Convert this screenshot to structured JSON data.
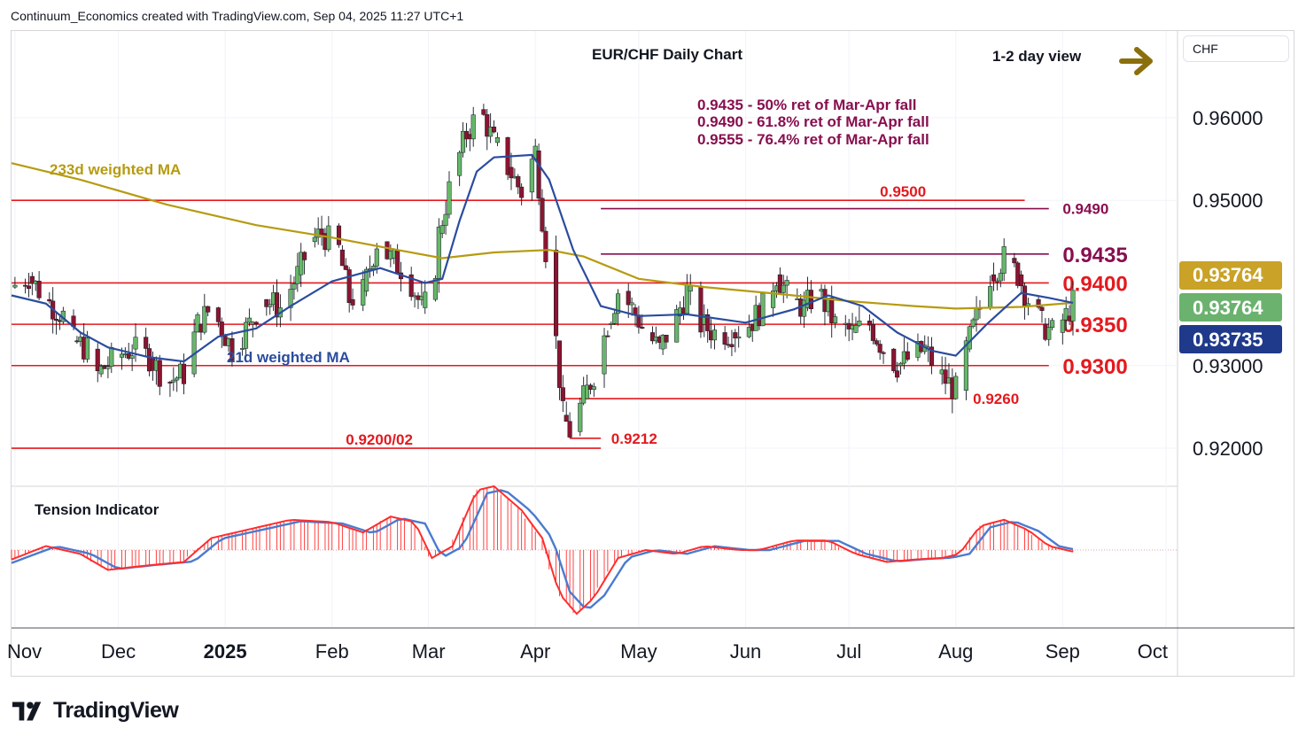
{
  "header": {
    "attribution": "Continuum_Economics created with TradingView.com, Sep 04, 2025 11:27 UTC+1"
  },
  "currency_badge": "CHF",
  "branding": "TradingView",
  "colors": {
    "support_resistance": "#e4191e",
    "retracement": "#880e4f",
    "ma233": "#b69b10",
    "ma21": "#2a4c9e",
    "candle_up": "#67b76a",
    "candle_down": "#8a1530",
    "badge_gold": "#c9a227",
    "badge_green": "#6bb26e",
    "badge_navy": "#1f3a8a",
    "tension_red": "#ff2d2d",
    "tension_blue": "#4a7bd0"
  },
  "chart_data": {
    "type": "candlestick",
    "title": "EUR/CHF Daily Chart",
    "view": "1-2 day view",
    "view_arrow": "right-arrow-icon",
    "y_axis": {
      "ticks": [
        "0.96000",
        "0.95000",
        "0.93000",
        "0.92000"
      ],
      "range": [
        0.9155,
        0.9705
      ]
    },
    "x_axis": {
      "ticks": [
        "Nov",
        "Dec",
        "2025",
        "Feb",
        "Mar",
        "Apr",
        "May",
        "Jun",
        "Jul",
        "Aug",
        "Sep",
        "Oct"
      ],
      "range": [
        "2024-10-31",
        "2025-10-01"
      ]
    },
    "price_badges": [
      "0.93764",
      "0.93764",
      "0.93735"
    ],
    "levels": [
      {
        "label": "0.9500",
        "value": 0.95,
        "from": "2024-10-31",
        "to": "2025-08-21",
        "label_date": "2025-07-10",
        "style": "sr"
      },
      {
        "label": "0.9490",
        "value": 0.949,
        "from": "2025-04-20",
        "to": "2025-08-28",
        "label_date": "2025-09-01",
        "style": "ret"
      },
      {
        "label": "0.9435",
        "value": 0.9435,
        "from": "2025-04-20",
        "to": "2025-08-28",
        "label_date": "2025-09-01",
        "style": "ret-bold"
      },
      {
        "label": "0.9400",
        "value": 0.94,
        "from": "2024-10-31",
        "to": "2025-08-28",
        "label_date": "2025-09-01",
        "style": "sr-bold"
      },
      {
        "label": "0.9350",
        "value": 0.935,
        "from": "2024-10-31",
        "to": "2025-08-28",
        "label_date": "2025-09-01",
        "style": "sr-bold"
      },
      {
        "label": "0.9300",
        "value": 0.93,
        "from": "2024-10-31",
        "to": "2025-08-28",
        "label_date": "2025-09-01",
        "style": "sr-bold"
      },
      {
        "label": "0.9260",
        "value": 0.926,
        "from": "2025-04-09",
        "to": "2025-08-01",
        "label_date": "2025-08-06",
        "style": "sr"
      },
      {
        "label": "0.9212",
        "value": 0.9212,
        "from": "2025-04-11",
        "to": "2025-04-20",
        "label_date": "2025-04-23",
        "style": "sr"
      },
      {
        "label": "0.9200/02",
        "value": 0.92,
        "from": "2024-10-31",
        "to": "2025-04-20",
        "label_date": "2025-02-05",
        "style": "sr"
      }
    ],
    "annotations": [
      "0.9435 - 50% ret of Mar-Apr fall",
      "0.9490 - 61.8% ret of Mar-Apr fall",
      "0.9555 - 76.4% ret of Mar-Apr fall"
    ],
    "series": [
      {
        "name": "233d weighted MA",
        "points": [
          [
            "2024-10-31",
            0.9545
          ],
          [
            "2024-11-20",
            0.9525
          ],
          [
            "2024-12-15",
            0.9495
          ],
          [
            "2025-01-10",
            0.947
          ],
          [
            "2025-02-01",
            0.9455
          ],
          [
            "2025-02-20",
            0.944
          ],
          [
            "2025-03-05",
            0.943
          ],
          [
            "2025-03-20",
            0.9437
          ],
          [
            "2025-04-05",
            0.944
          ],
          [
            "2025-04-15",
            0.9432
          ],
          [
            "2025-05-01",
            0.9405
          ],
          [
            "2025-05-20",
            0.9395
          ],
          [
            "2025-06-10",
            0.9387
          ],
          [
            "2025-07-01",
            0.9378
          ],
          [
            "2025-07-20",
            0.9372
          ],
          [
            "2025-08-01",
            0.9369
          ],
          [
            "2025-08-20",
            0.9371
          ],
          [
            "2025-09-04",
            0.9376
          ]
        ]
      },
      {
        "name": "21d weighted MA",
        "points": [
          [
            "2024-10-31",
            0.9385
          ],
          [
            "2024-11-10",
            0.9375
          ],
          [
            "2024-11-20",
            0.934
          ],
          [
            "2024-11-28",
            0.9322
          ],
          [
            "2024-12-10",
            0.931
          ],
          [
            "2024-12-20",
            0.9305
          ],
          [
            "2024-12-30",
            0.9335
          ],
          [
            "2025-01-10",
            0.9345
          ],
          [
            "2025-01-20",
            0.9372
          ],
          [
            "2025-02-01",
            0.9402
          ],
          [
            "2025-02-15",
            0.9418
          ],
          [
            "2025-02-28",
            0.94
          ],
          [
            "2025-03-05",
            0.9405
          ],
          [
            "2025-03-10",
            0.9475
          ],
          [
            "2025-03-15",
            0.9535
          ],
          [
            "2025-03-20",
            0.9552
          ],
          [
            "2025-03-31",
            0.9555
          ],
          [
            "2025-04-05",
            0.9525
          ],
          [
            "2025-04-12",
            0.944
          ],
          [
            "2025-04-20",
            0.9372
          ],
          [
            "2025-05-01",
            0.936
          ],
          [
            "2025-05-15",
            0.9362
          ],
          [
            "2025-06-01",
            0.9352
          ],
          [
            "2025-06-15",
            0.9368
          ],
          [
            "2025-06-25",
            0.9385
          ],
          [
            "2025-07-05",
            0.9372
          ],
          [
            "2025-07-15",
            0.934
          ],
          [
            "2025-07-25",
            0.9318
          ],
          [
            "2025-08-01",
            0.9312
          ],
          [
            "2025-08-10",
            0.935
          ],
          [
            "2025-08-20",
            0.9388
          ],
          [
            "2025-08-28",
            0.9382
          ],
          [
            "2025-09-04",
            0.9376
          ]
        ]
      }
    ],
    "ohlc_approx": [
      [
        "2024-10-31",
        0.9395
      ],
      [
        "2024-11-05",
        0.9408
      ],
      [
        "2024-11-10",
        0.938
      ],
      [
        "2024-11-15",
        0.936
      ],
      [
        "2024-11-18",
        0.933
      ],
      [
        "2024-11-22",
        0.932
      ],
      [
        "2024-11-25",
        0.929
      ],
      [
        "2024-11-30",
        0.931
      ],
      [
        "2024-12-05",
        0.932
      ],
      [
        "2024-12-10",
        0.931
      ],
      [
        "2024-12-15",
        0.928
      ],
      [
        "2024-12-20",
        0.929
      ],
      [
        "2024-12-24",
        0.935
      ],
      [
        "2024-12-28",
        0.937
      ],
      [
        "2025-01-03",
        0.932
      ],
      [
        "2025-01-08",
        0.935
      ],
      [
        "2025-01-12",
        0.938
      ],
      [
        "2025-01-17",
        0.937
      ],
      [
        "2025-01-22",
        0.941
      ],
      [
        "2025-01-26",
        0.945
      ],
      [
        "2025-01-29",
        0.946
      ],
      [
        "2025-02-03",
        0.944
      ],
      [
        "2025-02-06",
        0.938
      ],
      [
        "2025-02-10",
        0.939
      ],
      [
        "2025-02-14",
        0.945
      ],
      [
        "2025-02-18",
        0.943
      ],
      [
        "2025-02-23",
        0.941
      ],
      [
        "2025-02-27",
        0.937
      ],
      [
        "2025-03-02",
        0.938
      ],
      [
        "2025-03-04",
        0.946
      ],
      [
        "2025-03-08",
        0.953
      ],
      [
        "2025-03-12",
        0.958
      ],
      [
        "2025-03-16",
        0.961
      ],
      [
        "2025-03-20",
        0.957
      ],
      [
        "2025-03-24",
        0.954
      ],
      [
        "2025-03-28",
        0.951
      ],
      [
        "2025-04-01",
        0.956
      ],
      [
        "2025-04-04",
        0.944
      ],
      [
        "2025-04-07",
        0.933
      ],
      [
        "2025-04-09",
        0.924
      ],
      [
        "2025-04-11",
        0.922
      ],
      [
        "2025-04-15",
        0.926
      ],
      [
        "2025-04-18",
        0.929
      ],
      [
        "2025-04-22",
        0.935
      ],
      [
        "2025-04-25",
        0.939
      ],
      [
        "2025-04-29",
        0.937
      ],
      [
        "2025-05-03",
        0.934
      ],
      [
        "2025-05-07",
        0.932
      ],
      [
        "2025-05-12",
        0.936
      ],
      [
        "2025-05-15",
        0.939
      ],
      [
        "2025-05-19",
        0.935
      ],
      [
        "2025-05-23",
        0.934
      ],
      [
        "2025-05-28",
        0.934
      ],
      [
        "2025-06-02",
        0.935
      ],
      [
        "2025-06-06",
        0.937
      ],
      [
        "2025-06-10",
        0.941
      ],
      [
        "2025-06-14",
        0.938
      ],
      [
        "2025-06-18",
        0.937
      ],
      [
        "2025-06-22",
        0.939
      ],
      [
        "2025-06-27",
        0.935
      ],
      [
        "2025-07-02",
        0.934
      ],
      [
        "2025-07-07",
        0.935
      ],
      [
        "2025-07-11",
        0.932
      ],
      [
        "2025-07-15",
        0.93
      ],
      [
        "2025-07-19",
        0.931
      ],
      [
        "2025-07-23",
        0.932
      ],
      [
        "2025-07-27",
        0.929
      ],
      [
        "2025-08-01",
        0.927
      ],
      [
        "2025-08-04",
        0.932
      ],
      [
        "2025-08-08",
        0.937
      ],
      [
        "2025-08-11",
        0.941
      ],
      [
        "2025-08-15",
        0.943
      ],
      [
        "2025-08-19",
        0.941
      ],
      [
        "2025-08-22",
        0.938
      ],
      [
        "2025-08-26",
        0.935
      ],
      [
        "2025-08-29",
        0.934
      ],
      [
        "2025-09-02",
        0.936
      ],
      [
        "2025-09-04",
        0.9376
      ]
    ]
  },
  "tension_indicator": {
    "title": "Tension Indicator",
    "y_range": [
      -1.0,
      1.0
    ],
    "points": [
      [
        "2024-10-31",
        -0.12
      ],
      [
        "2024-11-10",
        0.05
      ],
      [
        "2024-11-20",
        -0.05
      ],
      [
        "2024-11-28",
        -0.25
      ],
      [
        "2024-12-08",
        -0.2
      ],
      [
        "2024-12-20",
        -0.15
      ],
      [
        "2024-12-28",
        0.15
      ],
      [
        "2025-01-10",
        0.28
      ],
      [
        "2025-01-20",
        0.38
      ],
      [
        "2025-02-01",
        0.35
      ],
      [
        "2025-02-10",
        0.22
      ],
      [
        "2025-02-18",
        0.42
      ],
      [
        "2025-02-25",
        0.35
      ],
      [
        "2025-03-02",
        -0.1
      ],
      [
        "2025-03-08",
        0.05
      ],
      [
        "2025-03-15",
        0.75
      ],
      [
        "2025-03-20",
        0.8
      ],
      [
        "2025-03-28",
        0.5
      ],
      [
        "2025-04-03",
        0.15
      ],
      [
        "2025-04-08",
        -0.55
      ],
      [
        "2025-04-13",
        -0.8
      ],
      [
        "2025-04-18",
        -0.6
      ],
      [
        "2025-04-25",
        -0.1
      ],
      [
        "2025-05-03",
        0.0
      ],
      [
        "2025-05-12",
        -0.05
      ],
      [
        "2025-05-20",
        0.05
      ],
      [
        "2025-05-30",
        0.0
      ],
      [
        "2025-06-05",
        0.0
      ],
      [
        "2025-06-15",
        0.12
      ],
      [
        "2025-06-25",
        0.12
      ],
      [
        "2025-07-03",
        -0.05
      ],
      [
        "2025-07-12",
        -0.15
      ],
      [
        "2025-07-20",
        -0.12
      ],
      [
        "2025-07-28",
        -0.1
      ],
      [
        "2025-08-02",
        -0.05
      ],
      [
        "2025-08-08",
        0.3
      ],
      [
        "2025-08-15",
        0.38
      ],
      [
        "2025-08-22",
        0.25
      ],
      [
        "2025-08-28",
        0.05
      ],
      [
        "2025-09-04",
        -0.02
      ]
    ]
  },
  "view_arrow_color": "#8b6f0c"
}
